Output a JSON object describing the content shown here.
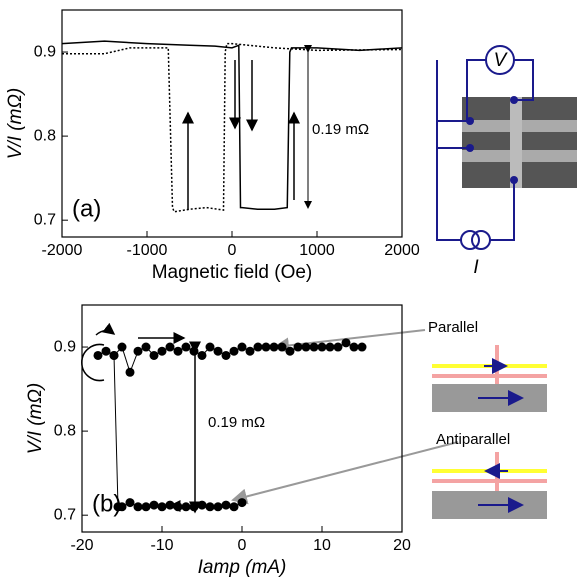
{
  "chart_data": [
    {
      "type": "line",
      "x_label": "Magnetic field (Oe)",
      "y_label": "V/I (mΩ)",
      "xlim": [
        -2000,
        2000
      ],
      "ylim": [
        0.68,
        0.95
      ],
      "xticks": [
        -2000,
        -1000,
        0,
        1000,
        2000
      ],
      "yticks": [
        0.7,
        0.8,
        0.9
      ],
      "series": [
        {
          "color": "#000000",
          "style": "solid",
          "x": [
            -2000,
            -1500,
            -1000,
            -500,
            -200,
            0,
            80,
            100,
            120,
            300,
            500,
            650,
            680,
            700,
            1000,
            1500,
            2000
          ],
          "values": [
            0.91,
            0.913,
            0.91,
            0.908,
            0.907,
            0.905,
            0.908,
            0.715,
            0.715,
            0.713,
            0.713,
            0.715,
            0.9,
            0.905,
            0.905,
            0.902,
            0.905
          ]
        },
        {
          "color": "#000000",
          "style": "dotted",
          "x": [
            -2000,
            -1500,
            -1200,
            -750,
            -700,
            -680,
            -500,
            -300,
            -100,
            -80,
            -60,
            0,
            500,
            1000,
            2000
          ],
          "values": [
            0.898,
            0.898,
            0.905,
            0.905,
            0.715,
            0.71,
            0.713,
            0.715,
            0.712,
            0.9,
            0.91,
            0.91,
            0.905,
            0.902,
            0.903
          ]
        }
      ],
      "annotations": [
        "(a)",
        "0.19 mΩ",
        "V",
        "I"
      ]
    },
    {
      "type": "scatter",
      "x_label": "Iamp (mA)",
      "y_label": "V/I (mΩ)",
      "xlim": [
        -20,
        20
      ],
      "ylim": [
        0.68,
        0.95
      ],
      "xticks": [
        -20,
        -10,
        0,
        10,
        20
      ],
      "yticks": [
        0.7,
        0.8,
        0.9
      ],
      "series": [
        {
          "color": "#000000",
          "x": [
            -18,
            -17,
            -16,
            -15,
            -14,
            -13,
            -12,
            -11,
            -10,
            -9,
            -8,
            -7,
            -6,
            -5,
            -4,
            -3,
            -2,
            -1,
            0,
            1,
            2,
            3,
            4,
            5,
            6,
            7,
            8,
            9,
            10,
            11,
            12,
            13,
            14,
            15
          ],
          "values": [
            0.89,
            0.895,
            0.89,
            0.9,
            0.87,
            0.895,
            0.9,
            0.89,
            0.895,
            0.9,
            0.895,
            0.9,
            0.895,
            0.89,
            0.9,
            0.895,
            0.89,
            0.895,
            0.9,
            0.895,
            0.9,
            0.9,
            0.9,
            0.9,
            0.895,
            0.9,
            0.9,
            0.9,
            0.9,
            0.9,
            0.9,
            0.905,
            0.9,
            0.9
          ]
        },
        {
          "color": "#000000",
          "x": [
            -16,
            -15.5,
            -15,
            -14,
            -13,
            -12,
            -11,
            -10,
            -9,
            -8,
            -7,
            -6,
            -5,
            -4,
            -3,
            -2,
            -1,
            0
          ],
          "values": [
            0.89,
            0.71,
            0.71,
            0.715,
            0.71,
            0.71,
            0.712,
            0.71,
            0.712,
            0.71,
            0.71,
            0.71,
            0.712,
            0.71,
            0.71,
            0.712,
            0.71,
            0.715
          ]
        }
      ],
      "annotations": [
        "(b)",
        "0.19 mΩ",
        "Parallel",
        "Antiparallel"
      ]
    }
  ]
}
